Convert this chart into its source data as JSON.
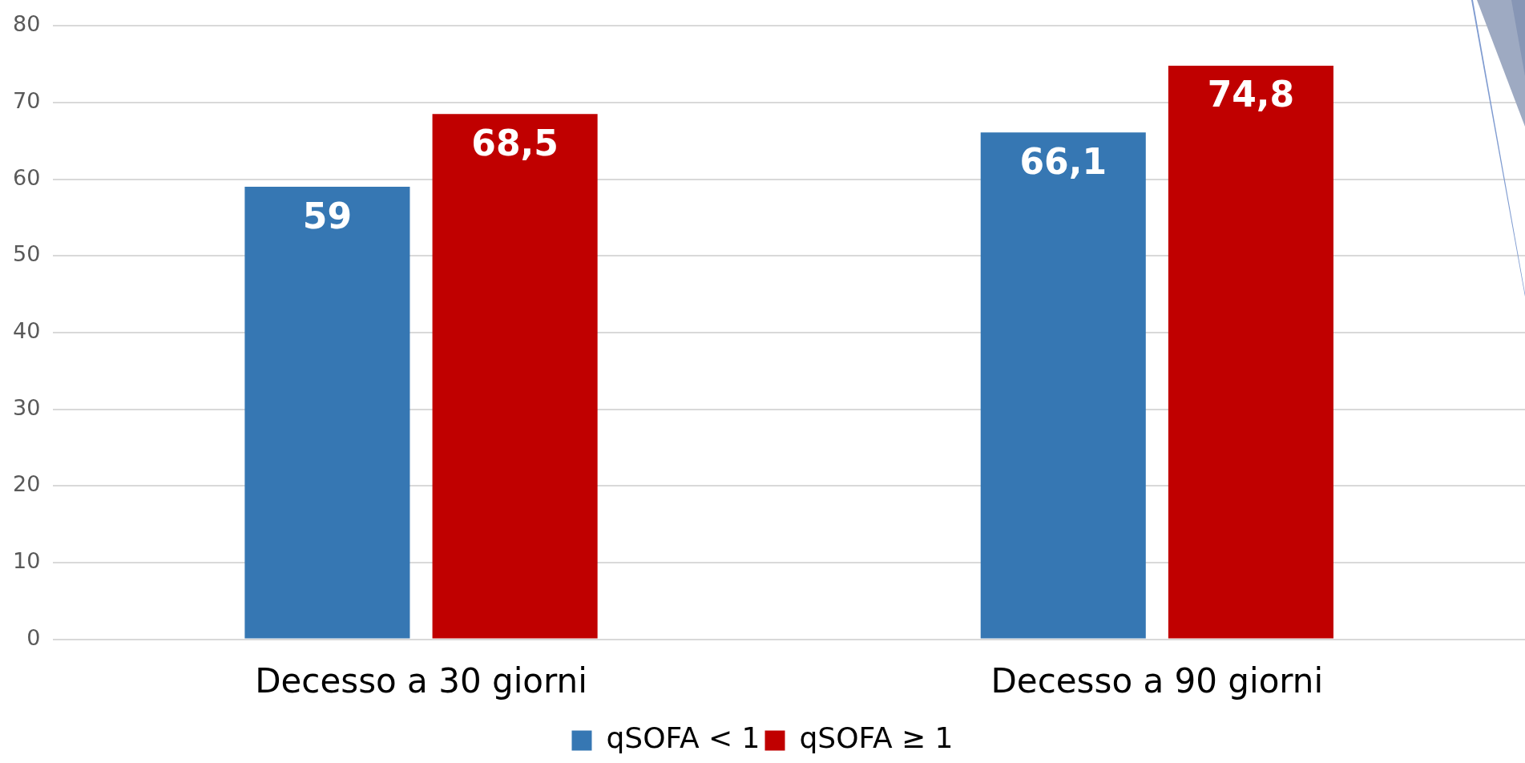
{
  "chart_data": {
    "type": "bar",
    "categories": [
      "Decesso a 30 giorni",
      "Decesso a 90 giorni"
    ],
    "series": [
      {
        "name": "qSOFA < 1",
        "color": "#3677b3",
        "values": [
          59,
          66.1
        ],
        "value_labels": [
          "59",
          "66,1"
        ]
      },
      {
        "name": "qSOFA ≥ 1",
        "color": "#c00000",
        "values": [
          68.5,
          74.8
        ],
        "value_labels": [
          "68,5",
          "74,8"
        ]
      }
    ],
    "ylim": [
      0,
      80
    ],
    "yticks": [
      0,
      10,
      20,
      30,
      40,
      50,
      60,
      70,
      80
    ],
    "grid": "y",
    "legend": "bottom"
  }
}
